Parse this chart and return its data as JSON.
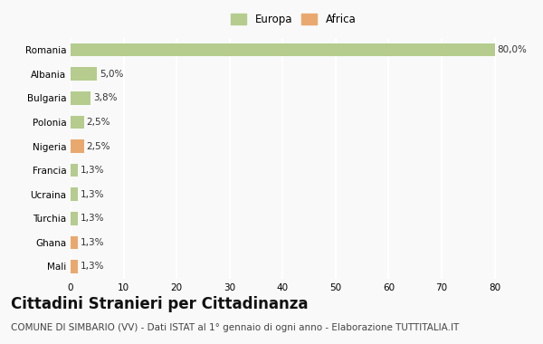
{
  "countries": [
    "Romania",
    "Albania",
    "Bulgaria",
    "Polonia",
    "Nigeria",
    "Francia",
    "Ucraina",
    "Turchia",
    "Ghana",
    "Mali"
  ],
  "values": [
    80.0,
    5.0,
    3.8,
    2.5,
    2.5,
    1.3,
    1.3,
    1.3,
    1.3,
    1.3
  ],
  "labels": [
    "80,0%",
    "5,0%",
    "3,8%",
    "2,5%",
    "2,5%",
    "1,3%",
    "1,3%",
    "1,3%",
    "1,3%",
    "1,3%"
  ],
  "continents": [
    "Europa",
    "Europa",
    "Europa",
    "Europa",
    "Africa",
    "Europa",
    "Europa",
    "Europa",
    "Africa",
    "Africa"
  ],
  "color_europa": "#b5cc8e",
  "color_africa": "#e9a96e",
  "legend_europa": "Europa",
  "legend_africa": "Africa",
  "title": "Cittadini Stranieri per Cittadinanza",
  "subtitle": "COMUNE DI SIMBARIO (VV) - Dati ISTAT al 1° gennaio di ogni anno - Elaborazione TUTTITALIA.IT",
  "xlim": [
    0,
    84
  ],
  "xticks": [
    0,
    10,
    20,
    30,
    40,
    50,
    60,
    70,
    80
  ],
  "background_color": "#f9f9f9",
  "grid_color": "#ffffff",
  "title_fontsize": 12,
  "subtitle_fontsize": 7.5,
  "label_fontsize": 7.5,
  "tick_fontsize": 7.5
}
